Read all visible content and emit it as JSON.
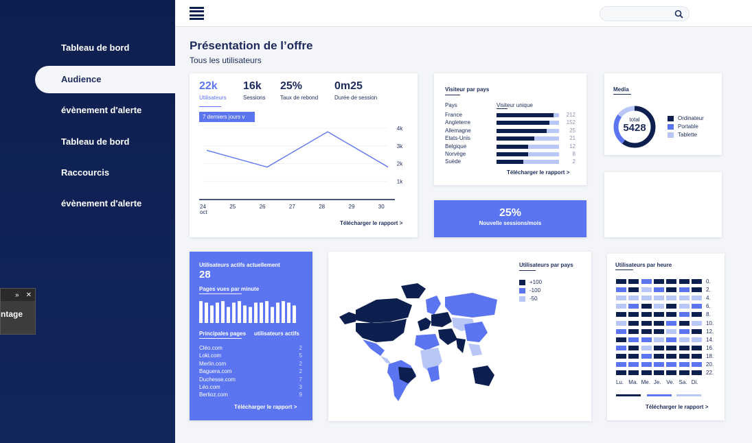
{
  "colors": {
    "navy": "#0d1f4f",
    "accent": "#5b74f0",
    "light": "#b9c7f7",
    "background": "#f3f5f8"
  },
  "sidebar": {
    "items": [
      {
        "label": "Tableau de bord",
        "active": false
      },
      {
        "label": "Audience",
        "active": true
      },
      {
        "label": "évènement d'alerte",
        "active": false
      },
      {
        "label": "Tableau de bord",
        "active": false
      },
      {
        "label": "Raccourcis",
        "active": false
      },
      {
        "label": "évènement d'alerte",
        "active": false
      }
    ]
  },
  "floating_panel": {
    "label": "ntage",
    "expand_icon": "»",
    "close_icon": "✕"
  },
  "topbar": {
    "search_placeholder": ""
  },
  "page": {
    "title": "Présentation de l’offre",
    "subtitle": "Tous les utilisateurs"
  },
  "overview": {
    "kpis": [
      {
        "value": "22k",
        "label": "Utilisateurs"
      },
      {
        "value": "16k",
        "label": "Sessions"
      },
      {
        "value": "25%",
        "label": "Taux de rebond"
      },
      {
        "value": "0m25",
        "label": "Durée de session"
      }
    ],
    "range_button": "7 derniers jours v",
    "link": "Télécharger le rapport >"
  },
  "countries": {
    "title": "Visiteur par pays",
    "col_country": "Pays",
    "col_visitors": "Visiteur unique",
    "rows": [
      {
        "name": "France",
        "value": "212",
        "fill": 0.91
      },
      {
        "name": "Angleterre",
        "value": "152",
        "fill": 0.85
      },
      {
        "name": "Allemagne",
        "value": "25",
        "fill": 0.8
      },
      {
        "name": "Etats-Unis",
        "value": "21",
        "fill": 0.6
      },
      {
        "name": "Belgique",
        "value": "12",
        "fill": 0.5
      },
      {
        "name": "Norvège",
        "value": "8",
        "fill": 0.5
      },
      {
        "name": "Suède",
        "value": "2",
        "fill": 0.43
      }
    ],
    "link": "Télécharger le rapport >"
  },
  "media": {
    "title": "Media",
    "total_label": "total",
    "total_value": "5428",
    "legend": [
      {
        "label": "Ordinateur",
        "color": "#0d1f4f",
        "share": 0.6
      },
      {
        "label": "Portable",
        "color": "#5b74f0",
        "share": 0.25
      },
      {
        "label": "Tablette",
        "color": "#b9c7f7",
        "share": 0.15
      }
    ]
  },
  "sessions_promo": {
    "value": "25%",
    "label": "Nouvelle sessions/mois"
  },
  "active_users": {
    "title": "Utilisateurs actifs actuellement",
    "value": "28",
    "pages_title": "Pages vues par minute",
    "col_pages": "Principales pages",
    "col_users": "utilisateurs actifs",
    "sites": [
      {
        "name": "Cléo.com",
        "value": "2"
      },
      {
        "name": "Loki.com",
        "value": "5"
      },
      {
        "name": "Merlin.com",
        "value": "2"
      },
      {
        "name": "Baguera.com",
        "value": "2"
      },
      {
        "name": "Duchesse.com",
        "value": "7"
      },
      {
        "name": "Léo.com",
        "value": "3"
      },
      {
        "name": "Berlioz.com",
        "value": "9"
      }
    ],
    "link": "Télécharger le rapport >"
  },
  "world_map": {
    "title": "Utilisateurs par pays",
    "legend": [
      {
        "label": "+100",
        "color": "#0d1f4f"
      },
      {
        "label": "-100",
        "color": "#5b74f0"
      },
      {
        "label": "-50",
        "color": "#b9c7f7"
      }
    ]
  },
  "hourly": {
    "title": "Utilisateurs par heure",
    "hours": [
      "0.",
      "2.",
      "4.",
      "6.",
      "8.",
      "10.",
      "12.",
      "14.",
      "16.",
      "18.",
      "20.",
      "22."
    ],
    "days": [
      "Lu.",
      "Ma.",
      "Me.",
      "Je.",
      "Ve.",
      "Sa.",
      "Di."
    ],
    "grid": [
      [
        0,
        0,
        1,
        0,
        0,
        0,
        0
      ],
      [
        1,
        0,
        2,
        1,
        0,
        1,
        0
      ],
      [
        2,
        2,
        2,
        2,
        2,
        2,
        2
      ],
      [
        2,
        1,
        0,
        2,
        0,
        2,
        1
      ],
      [
        0,
        0,
        0,
        0,
        0,
        1,
        0
      ],
      [
        2,
        0,
        0,
        0,
        1,
        0,
        2
      ],
      [
        1,
        0,
        0,
        0,
        2,
        1,
        0
      ],
      [
        0,
        1,
        1,
        2,
        1,
        2,
        2
      ],
      [
        1,
        0,
        2,
        0,
        0,
        0,
        0
      ],
      [
        0,
        0,
        1,
        0,
        0,
        0,
        0
      ],
      [
        1,
        1,
        1,
        1,
        1,
        1,
        1
      ],
      [
        0,
        0,
        0,
        0,
        0,
        0,
        0
      ]
    ],
    "link": "Télécharger le rapport >"
  },
  "chart_data": [
    {
      "type": "line",
      "x": [
        "24\noct",
        "25",
        "26",
        "27",
        "28",
        "29",
        "30"
      ],
      "x_labels": [
        "24",
        "25",
        "26",
        "27",
        "28",
        "29",
        "30"
      ],
      "x_sublabel": "oct",
      "y_ticks": [
        "4k",
        "3k",
        "2k",
        "1k"
      ],
      "ylim": [
        0,
        4000
      ],
      "series": [
        {
          "values": [
            2750,
            2300,
            1800,
            2300,
            3800,
            2800,
            1800
          ]
        }
      ]
    },
    {
      "type": "bar",
      "values": [
        30,
        28,
        24,
        28,
        30,
        22,
        28,
        30,
        24,
        22,
        28,
        28,
        30,
        22,
        28,
        30,
        28,
        24
      ]
    }
  ]
}
